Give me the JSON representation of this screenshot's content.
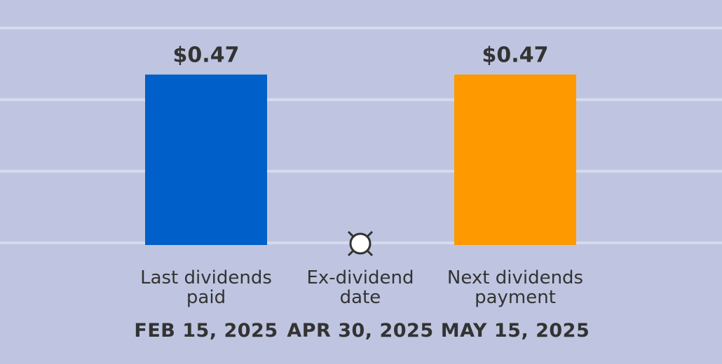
{
  "chart_data": {
    "type": "bar",
    "categories": [
      "Last dividends paid",
      "Ex-dividend date",
      "Next dividends payment"
    ],
    "dates": [
      "FEB 15, 2025",
      "APR 30, 2025",
      "MAY 15, 2025"
    ],
    "values": [
      0.47,
      null,
      0.47
    ],
    "value_labels": [
      "$0.47",
      null,
      "$0.47"
    ],
    "colors": [
      "#005fc8",
      null,
      "#ff9900"
    ],
    "ylim": [
      0,
      0.6
    ],
    "yticks": [
      0,
      0.2,
      0.4,
      0.6
    ],
    "grid": true
  }
}
